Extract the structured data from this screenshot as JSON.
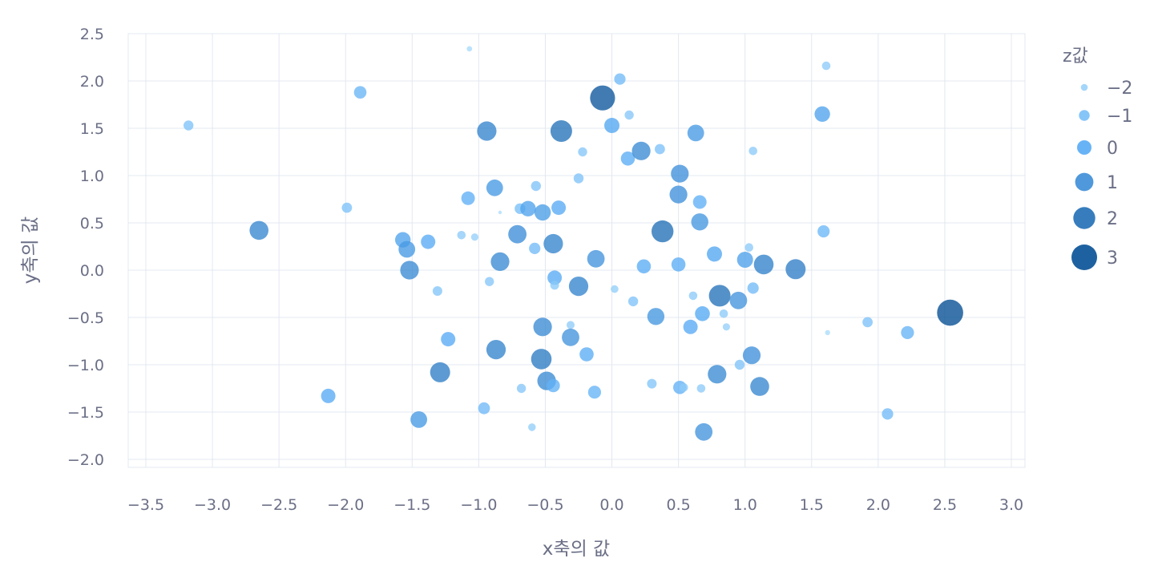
{
  "chart_data": {
    "type": "scatter",
    "title": "",
    "xlabel": "x축의 값",
    "ylabel": "y축의 값",
    "legend_title": "z값",
    "legend_position": "right",
    "grid": true,
    "xlim": [
      -3.6,
      3.0
    ],
    "ylim": [
      -2.0,
      2.5
    ],
    "x_ticks": [
      -3.5,
      -3.0,
      -2.5,
      -2.0,
      -1.5,
      -1.0,
      -0.5,
      0.0,
      0.5,
      1.0,
      1.5,
      2.0,
      2.5,
      3.0
    ],
    "x_tick_labels": [
      "−3.5",
      "−3.0",
      "−2.5",
      "−2.0",
      "−1.5",
      "−1.0",
      "−0.5",
      "0.0",
      "0.5",
      "1.0",
      "1.5",
      "2.0",
      "2.5",
      "3.0"
    ],
    "y_ticks": [
      2.5,
      2.0,
      1.5,
      1.0,
      0.5,
      0.0,
      -0.5,
      -1.0,
      -1.5,
      -2.0
    ],
    "y_tick_labels": [
      "2.5",
      "2.0",
      "1.5",
      "1.0",
      "0.5",
      "0.0",
      "−0.5",
      "−1.0",
      "−1.5",
      "−2.0"
    ],
    "legend_items": [
      {
        "label": "−2",
        "z": -2
      },
      {
        "label": "−1",
        "z": -1
      },
      {
        "label": "0",
        "z": 0
      },
      {
        "label": "1",
        "z": 1
      },
      {
        "label": "2",
        "z": 2
      },
      {
        "label": "3",
        "z": 3
      }
    ],
    "colors": {
      "zlow": "#aadcfb",
      "zmid": "#56aaf5",
      "zhigh": "#004a8f",
      "grid": "#e3e8f0",
      "text": "#6b6f86"
    },
    "points": [
      {
        "x": -3.18,
        "y": 1.53,
        "z": -1.2
      },
      {
        "x": -2.65,
        "y": 0.42,
        "z": 1.2
      },
      {
        "x": -2.13,
        "y": -1.33,
        "z": 0.0
      },
      {
        "x": -1.99,
        "y": 0.66,
        "z": -1.1
      },
      {
        "x": -1.89,
        "y": 1.88,
        "z": -0.5
      },
      {
        "x": -1.57,
        "y": 0.32,
        "z": 0.3
      },
      {
        "x": -1.54,
        "y": 0.22,
        "z": 0.6
      },
      {
        "x": -1.52,
        "y": 0.0,
        "z": 1.1
      },
      {
        "x": -1.45,
        "y": -1.58,
        "z": 0.6
      },
      {
        "x": -1.38,
        "y": 0.3,
        "z": 0.0
      },
      {
        "x": -1.31,
        "y": -0.22,
        "z": -1.3
      },
      {
        "x": -1.29,
        "y": -1.08,
        "z": 1.5
      },
      {
        "x": -1.23,
        "y": -0.73,
        "z": 0.0
      },
      {
        "x": -1.13,
        "y": 0.37,
        "z": -1.6
      },
      {
        "x": -1.08,
        "y": 0.76,
        "z": -0.2
      },
      {
        "x": -1.07,
        "y": 2.34,
        "z": -2.4
      },
      {
        "x": -1.03,
        "y": 0.35,
        "z": -1.9
      },
      {
        "x": -0.96,
        "y": -1.46,
        "z": -0.7
      },
      {
        "x": -0.94,
        "y": 1.47,
        "z": 1.3
      },
      {
        "x": -0.92,
        "y": -0.12,
        "z": -1.4
      },
      {
        "x": -0.88,
        "y": 0.87,
        "z": 0.6
      },
      {
        "x": -0.87,
        "y": -0.84,
        "z": 1.3
      },
      {
        "x": -0.84,
        "y": 0.09,
        "z": 1.1
      },
      {
        "x": -0.84,
        "y": 0.61,
        "z": -2.9
      },
      {
        "x": -0.71,
        "y": 0.38,
        "z": 1.0
      },
      {
        "x": -0.69,
        "y": 0.65,
        "z": -1.0
      },
      {
        "x": -0.68,
        "y": -1.25,
        "z": -1.4
      },
      {
        "x": -0.63,
        "y": 0.65,
        "z": 0.3
      },
      {
        "x": -0.6,
        "y": -1.66,
        "z": -1.8
      },
      {
        "x": -0.58,
        "y": 0.23,
        "z": -0.8
      },
      {
        "x": -0.57,
        "y": 0.89,
        "z": -1.2
      },
      {
        "x": -0.52,
        "y": 0.61,
        "z": 0.5
      },
      {
        "x": -0.52,
        "y": -0.6,
        "z": 1.1
      },
      {
        "x": -0.53,
        "y": -0.94,
        "z": 1.6
      },
      {
        "x": -0.49,
        "y": -1.17,
        "z": 1.1
      },
      {
        "x": -0.44,
        "y": 0.28,
        "z": 1.3
      },
      {
        "x": -0.44,
        "y": -1.22,
        "z": -0.3
      },
      {
        "x": -0.43,
        "y": -0.08,
        "z": 0.0
      },
      {
        "x": -0.43,
        "y": -0.16,
        "z": -1.5
      },
      {
        "x": -0.4,
        "y": 0.66,
        "z": 0.0
      },
      {
        "x": -0.38,
        "y": 1.47,
        "z": 1.9
      },
      {
        "x": -0.31,
        "y": -0.58,
        "z": -1.7
      },
      {
        "x": -0.31,
        "y": -0.71,
        "z": 0.8
      },
      {
        "x": -0.25,
        "y": -0.17,
        "z": 1.3
      },
      {
        "x": -0.25,
        "y": 0.97,
        "z": -1.2
      },
      {
        "x": -0.22,
        "y": 1.25,
        "z": -1.4
      },
      {
        "x": -0.19,
        "y": -0.89,
        "z": -0.1
      },
      {
        "x": -0.12,
        "y": 0.12,
        "z": 0.8
      },
      {
        "x": -0.13,
        "y": -1.29,
        "z": -0.4
      },
      {
        "x": -0.07,
        "y": 1.82,
        "z": 2.8
      },
      {
        "x": 0.0,
        "y": 1.53,
        "z": 0.2
      },
      {
        "x": 0.02,
        "y": -0.2,
        "z": -1.8
      },
      {
        "x": 0.06,
        "y": 2.02,
        "z": -0.8
      },
      {
        "x": 0.12,
        "y": 1.18,
        "z": -0.1
      },
      {
        "x": 0.13,
        "y": 1.64,
        "z": -1.4
      },
      {
        "x": 0.16,
        "y": -0.33,
        "z": -1.2
      },
      {
        "x": 0.22,
        "y": 1.26,
        "z": 1.1
      },
      {
        "x": 0.24,
        "y": 0.04,
        "z": -0.1
      },
      {
        "x": 0.3,
        "y": -1.2,
        "z": -1.3
      },
      {
        "x": 0.33,
        "y": -0.49,
        "z": 0.7
      },
      {
        "x": 0.36,
        "y": 1.28,
        "z": -1.1
      },
      {
        "x": 0.38,
        "y": 0.41,
        "z": 2.0
      },
      {
        "x": 0.5,
        "y": 0.06,
        "z": -0.1
      },
      {
        "x": 0.5,
        "y": 0.8,
        "z": 0.9
      },
      {
        "x": 0.51,
        "y": 1.02,
        "z": 0.9
      },
      {
        "x": 0.51,
        "y": -1.24,
        "z": -0.3
      },
      {
        "x": 0.54,
        "y": -1.24,
        "z": -1.6
      },
      {
        "x": 0.59,
        "y": -0.6,
        "z": 0.0
      },
      {
        "x": 0.61,
        "y": -0.27,
        "z": -1.6
      },
      {
        "x": 0.63,
        "y": 1.45,
        "z": 0.6
      },
      {
        "x": 0.66,
        "y": 0.72,
        "z": -0.2
      },
      {
        "x": 0.66,
        "y": 0.51,
        "z": 0.7
      },
      {
        "x": 0.67,
        "y": -1.25,
        "z": -1.6
      },
      {
        "x": 0.68,
        "y": -0.46,
        "z": 0.1
      },
      {
        "x": 0.69,
        "y": -1.71,
        "z": 0.8
      },
      {
        "x": 0.77,
        "y": 0.17,
        "z": 0.2
      },
      {
        "x": 0.79,
        "y": -1.1,
        "z": 1.1
      },
      {
        "x": 0.81,
        "y": -0.27,
        "z": 1.9
      },
      {
        "x": 0.84,
        "y": -0.46,
        "z": -1.6
      },
      {
        "x": 0.86,
        "y": -0.6,
        "z": -1.9
      },
      {
        "x": 0.95,
        "y": -0.32,
        "z": 0.8
      },
      {
        "x": 0.96,
        "y": -1.0,
        "z": -1.2
      },
      {
        "x": 1.0,
        "y": 0.11,
        "z": 0.4
      },
      {
        "x": 1.03,
        "y": 0.24,
        "z": -1.6
      },
      {
        "x": 1.05,
        "y": -0.9,
        "z": 0.9
      },
      {
        "x": 1.06,
        "y": 1.26,
        "z": -1.6
      },
      {
        "x": 1.06,
        "y": -0.19,
        "z": -0.8
      },
      {
        "x": 1.11,
        "y": -1.23,
        "z": 1.2
      },
      {
        "x": 1.14,
        "y": 0.06,
        "z": 1.4
      },
      {
        "x": 1.38,
        "y": 0.01,
        "z": 1.5
      },
      {
        "x": 1.58,
        "y": 1.65,
        "z": 0.3
      },
      {
        "x": 1.59,
        "y": 0.41,
        "z": -0.6
      },
      {
        "x": 1.61,
        "y": 2.16,
        "z": -1.6
      },
      {
        "x": 1.62,
        "y": -0.66,
        "z": -2.5
      },
      {
        "x": 1.92,
        "y": -0.55,
        "z": -1.1
      },
      {
        "x": 2.07,
        "y": -1.52,
        "z": -0.8
      },
      {
        "x": 2.22,
        "y": -0.66,
        "z": -0.4
      },
      {
        "x": 2.54,
        "y": -0.45,
        "z": 3.1
      }
    ]
  }
}
